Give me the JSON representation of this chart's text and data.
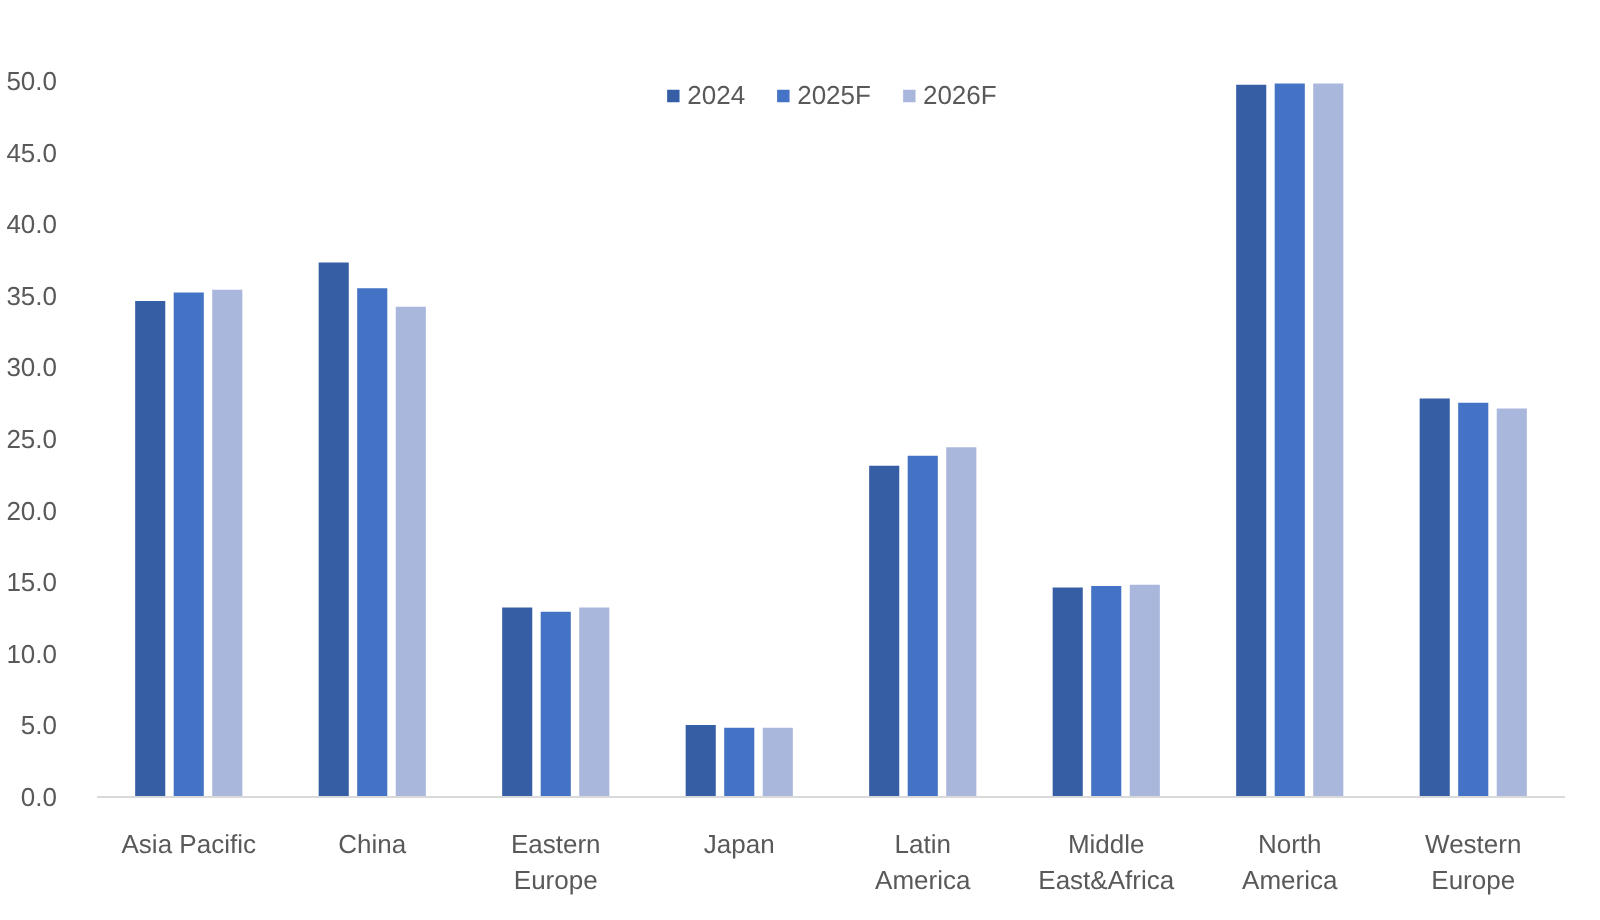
{
  "chart_data": {
    "type": "bar",
    "categories": [
      "Asia Pacific",
      "China",
      "Eastern Europe",
      "Japan",
      "Latin America",
      "Middle East&Africa",
      "North America",
      "Western Europe"
    ],
    "series": [
      {
        "name": "2024",
        "color": "#365ea4",
        "values": [
          34.7,
          37.4,
          13.3,
          5.1,
          23.2,
          14.7,
          49.8,
          27.9
        ]
      },
      {
        "name": "2025F",
        "color": "#4472c4",
        "values": [
          35.3,
          35.6,
          13.0,
          4.9,
          23.9,
          14.8,
          49.9,
          27.6
        ]
      },
      {
        "name": "2026F",
        "color": "#a9b7dc",
        "values": [
          35.5,
          34.3,
          13.3,
          4.9,
          24.5,
          14.9,
          49.9,
          27.2
        ]
      }
    ],
    "ylim": [
      0,
      50
    ],
    "yticks": [
      {
        "value": 0,
        "label": "0.0"
      },
      {
        "value": 5,
        "label": "5.0"
      },
      {
        "value": 10,
        "label": "10.0"
      },
      {
        "value": 15,
        "label": "15.0"
      },
      {
        "value": 20,
        "label": "20.0"
      },
      {
        "value": 25,
        "label": "25.0"
      },
      {
        "value": 30,
        "label": "30.0"
      },
      {
        "value": 35,
        "label": "35.0"
      },
      {
        "value": 40,
        "label": "40.0"
      },
      {
        "value": 45,
        "label": "45.0"
      },
      {
        "value": 50,
        "label": "50.0"
      }
    ],
    "grid": false,
    "legend": "top"
  }
}
